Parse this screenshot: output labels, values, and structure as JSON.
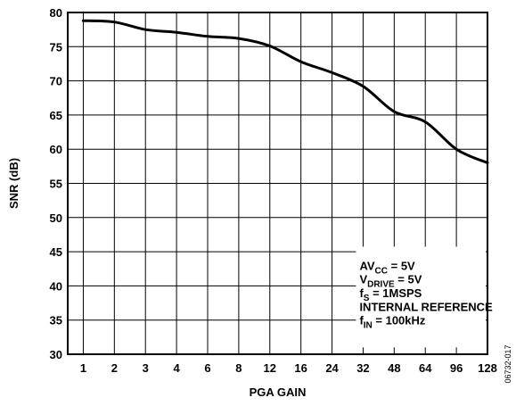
{
  "chart_data": {
    "type": "line",
    "xlabel": "PGA GAIN",
    "ylabel": "SNR (dB)",
    "ylim": [
      30,
      80
    ],
    "yticks": [
      30,
      35,
      40,
      45,
      50,
      55,
      60,
      65,
      70,
      75,
      80
    ],
    "categories": [
      "1",
      "2",
      "3",
      "4",
      "6",
      "8",
      "12",
      "16",
      "24",
      "32",
      "48",
      "64",
      "96",
      "128"
    ],
    "grid": true,
    "series": [
      {
        "values": [
          78.8,
          78.6,
          77.5,
          77.1,
          76.5,
          76.2,
          75.1,
          72.8,
          71.2,
          69.2,
          65.5,
          64.0,
          60.0,
          58.0
        ]
      }
    ],
    "annotation": {
      "lines": [
        {
          "main": "AV",
          "sub": "CC",
          "rest": " = 5V"
        },
        {
          "main": "V",
          "sub": "DRIVE",
          "rest": " = 5V"
        },
        {
          "main": "f",
          "sub": "S",
          "rest": " = 1MSPS"
        },
        {
          "main": "INTERNAL REFERENCE",
          "sub": "",
          "rest": ""
        },
        {
          "main": "f",
          "sub": "IN",
          "rest": " = 100kHz"
        }
      ]
    },
    "figure_id": "06732-017"
  }
}
